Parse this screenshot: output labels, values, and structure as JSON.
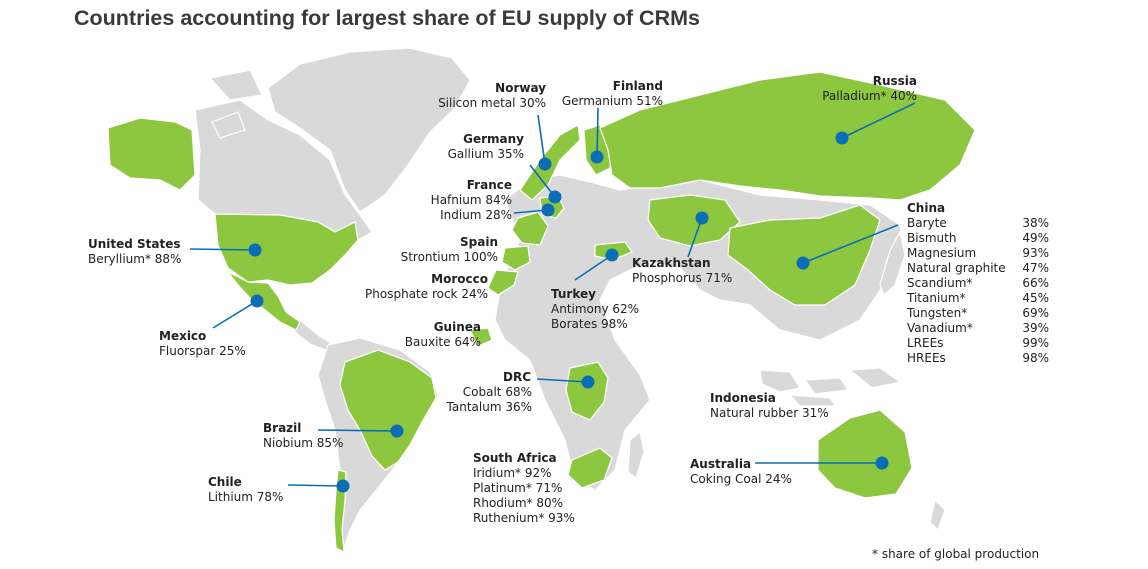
{
  "title": "Countries accounting for largest share of EU supply of CRMs",
  "footnote": "* share of global production",
  "colors": {
    "highlight": "#8dc63f",
    "land": "#d9d9d9",
    "marker": "#0a6db5",
    "text": "#222222"
  },
  "countries": {
    "norway": {
      "name": "Norway",
      "materials": [
        "Silicon metal 30%"
      ]
    },
    "finland": {
      "name": "Finland",
      "materials": [
        "Germanium 51%"
      ]
    },
    "russia": {
      "name": "Russia",
      "materials": [
        "Palladium* 40%"
      ]
    },
    "germany": {
      "name": "Germany",
      "materials": [
        "Gallium 35%"
      ]
    },
    "france": {
      "name": "France",
      "materials": [
        "Hafnium 84%",
        "Indium 28%"
      ]
    },
    "usa": {
      "name": "United States",
      "materials": [
        "Beryllium* 88%"
      ]
    },
    "spain": {
      "name": "Spain",
      "materials": [
        "Strontium 100%"
      ]
    },
    "morocco": {
      "name": "Morocco",
      "materials": [
        "Phosphate rock 24%"
      ]
    },
    "kazakhstan": {
      "name": "Kazakhstan",
      "materials": [
        "Phosphorus 71%"
      ]
    },
    "turkey": {
      "name": "Turkey",
      "materials": [
        "Antimony 62%",
        "Borates 98%"
      ]
    },
    "mexico": {
      "name": "Mexico",
      "materials": [
        "Fluorspar 25%"
      ]
    },
    "guinea": {
      "name": "Guinea",
      "materials": [
        "Bauxite 64%"
      ]
    },
    "drc": {
      "name": "DRC",
      "materials": [
        "Cobalt 68%",
        "Tantalum 36%"
      ]
    },
    "indonesia": {
      "name": "Indonesia",
      "materials": [
        "Natural rubber 31%"
      ]
    },
    "brazil": {
      "name": "Brazil",
      "materials": [
        "Niobium 85%"
      ]
    },
    "south_africa": {
      "name": "South Africa",
      "materials": [
        "Iridium* 92%",
        "Platinum* 71%",
        "Rhodium* 80%",
        "Ruthenium* 93%"
      ]
    },
    "australia": {
      "name": "Australia",
      "materials": [
        "Coking Coal 24%"
      ]
    },
    "chile": {
      "name": "Chile",
      "materials": [
        "Lithium 78%"
      ]
    },
    "china": {
      "name": "China",
      "rows": [
        {
          "material": "Baryte",
          "share": "38%"
        },
        {
          "material": "Bismuth",
          "share": "49%"
        },
        {
          "material": "Magnesium",
          "share": "93%"
        },
        {
          "material": "Natural graphite",
          "share": "47%"
        },
        {
          "material": "Scandium*",
          "share": "66%"
        },
        {
          "material": "Titanium*",
          "share": "45%"
        },
        {
          "material": "Tungsten*",
          "share": "69%"
        },
        {
          "material": "Vanadium*",
          "share": "39%"
        },
        {
          "material": "LREEs",
          "share": "99%"
        },
        {
          "material": "HREEs",
          "share": "98%"
        }
      ]
    }
  }
}
